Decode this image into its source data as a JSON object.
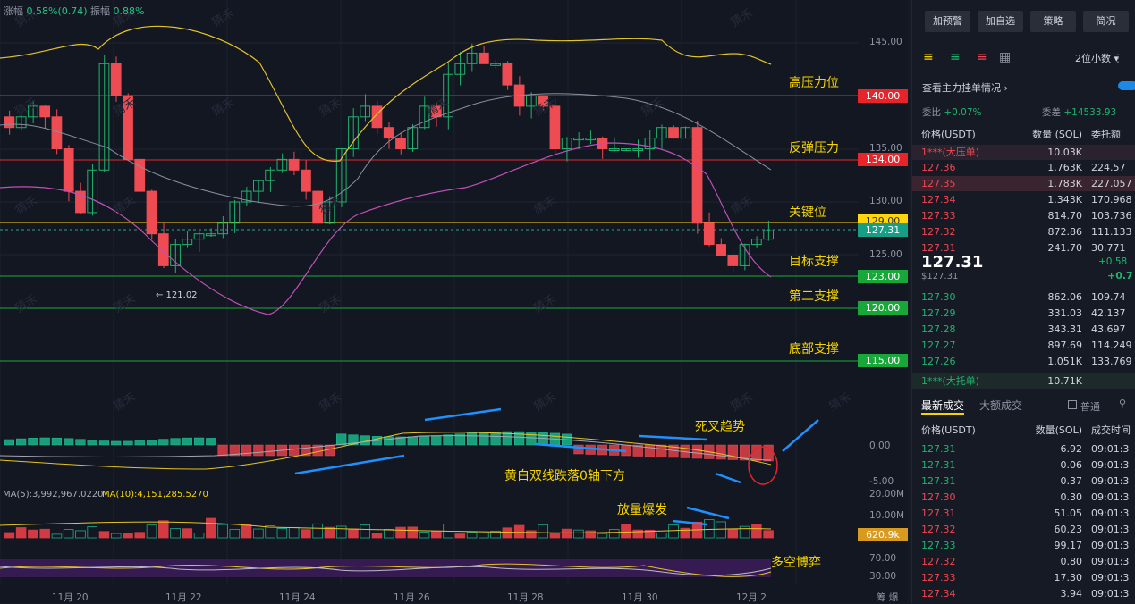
{
  "chart": {
    "stats": {
      "change_label": "涨幅",
      "change_value": "0.58%(0.74)",
      "amp_label": "振幅",
      "amp_value": "0.88%"
    },
    "y_ticks": [
      "145.00",
      "135.00",
      "130.00",
      "125.00"
    ],
    "level_boxes": [
      {
        "price": "140.00",
        "color": "#e8242b",
        "label": "高压力位"
      },
      {
        "price": "134.00",
        "color": "#e8242b",
        "label": "反弹压力"
      },
      {
        "price": "129.00",
        "color": "#ffd60a",
        "label": "关键位"
      },
      {
        "price": "123.00",
        "color": "#18a83a",
        "label": "目标支撑"
      },
      {
        "price": "120.00",
        "color": "#18a83a",
        "label": "第二支撑"
      },
      {
        "price": "115.00",
        "color": "#18a83a",
        "label": "底部支撑"
      }
    ],
    "current_price": "127.31",
    "low_marker": "← 121.02",
    "macd_ticks": [
      "0.00",
      "-5.00"
    ],
    "annotations": {
      "death_cross": "死叉趋势",
      "below_zero": "黄白双线跌落0轴下方",
      "volume_burst": "放量爆发",
      "bull_bear": "多空博弈"
    },
    "vol_ticks": [
      "20.00M",
      "10.00M"
    ],
    "vol_current": "620.9k",
    "rsi_ticks": [
      "70.00",
      "30.00"
    ],
    "ma5": "MA(5):3,992,967.0220",
    "ma10": "MA(10):4,151,285.5270",
    "x_labels": [
      "11月 20",
      "11月 22",
      "11月 24",
      "11月 26",
      "11月 28",
      "11月 30",
      "12月 2"
    ],
    "corner": "筹  爆",
    "watermark": "猜禾"
  },
  "panel": {
    "buttons": [
      "加预警",
      "加自选",
      "策略",
      "简况"
    ],
    "decimals": "2位小数",
    "main_order_title": "查看主力挂单情况",
    "wb_label": "委比",
    "wb_value": "+0.07%",
    "wc_label": "委差",
    "wc_value": "+14533.93",
    "ob_headers": [
      "价格(USDT)",
      "数量 (SOL)",
      "委托额"
    ],
    "big_ask_label": "1***(大压单)",
    "big_ask_qty": "10.03K",
    "asks": [
      {
        "p": "127.36",
        "q": "1.763K",
        "t": "224.57"
      },
      {
        "p": "127.35",
        "q": "1.783K",
        "t": "227.057"
      },
      {
        "p": "127.34",
        "q": "1.343K",
        "t": "170.968"
      },
      {
        "p": "127.33",
        "q": "814.70",
        "t": "103.736"
      },
      {
        "p": "127.32",
        "q": "872.86",
        "t": "111.133"
      },
      {
        "p": "127.31",
        "q": "241.70",
        "t": "30.771"
      }
    ],
    "last_price": "127.31",
    "last_sub": "$127.31",
    "last_pct": "+0.58",
    "last_chg": "+0.7",
    "bids": [
      {
        "p": "127.30",
        "q": "862.06",
        "t": "109.74"
      },
      {
        "p": "127.29",
        "q": "331.03",
        "t": "42.137"
      },
      {
        "p": "127.28",
        "q": "343.31",
        "t": "43.697"
      },
      {
        "p": "127.27",
        "q": "897.69",
        "t": "114.249"
      },
      {
        "p": "127.26",
        "q": "1.051K",
        "t": "133.769"
      }
    ],
    "big_bid_label": "1***(大托单)",
    "big_bid_qty": "10.71K",
    "tabs": [
      "最新成交",
      "大额成交"
    ],
    "normal": "普通",
    "tr_headers": [
      "价格(USDT)",
      "数量(SOL)",
      "成交时间"
    ],
    "trades": [
      {
        "p": "127.31",
        "q": "6.92",
        "t": "09:01:3",
        "c": "g"
      },
      {
        "p": "127.31",
        "q": "0.06",
        "t": "09:01:3",
        "c": "g"
      },
      {
        "p": "127.31",
        "q": "0.37",
        "t": "09:01:3",
        "c": "g"
      },
      {
        "p": "127.30",
        "q": "0.30",
        "t": "09:01:3",
        "c": "r"
      },
      {
        "p": "127.31",
        "q": "51.05",
        "t": "09:01:3",
        "c": "r"
      },
      {
        "p": "127.32",
        "q": "60.23",
        "t": "09:01:3",
        "c": "r"
      },
      {
        "p": "127.33",
        "q": "99.17",
        "t": "09:01:3",
        "c": "g"
      },
      {
        "p": "127.32",
        "q": "0.80",
        "t": "09:01:3",
        "c": "r"
      },
      {
        "p": "127.33",
        "q": "17.30",
        "t": "09:01:3",
        "c": "r"
      },
      {
        "p": "127.34",
        "q": "3.94",
        "t": "09:01:3",
        "c": "r"
      }
    ]
  }
}
